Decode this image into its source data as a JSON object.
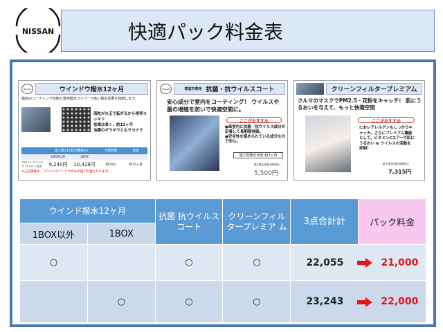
{
  "header": {
    "brand": "NISSAN",
    "title": "快適パック料金表"
  },
  "cards": [
    {
      "title": "ウインドウ撥水12ヶ月",
      "desc": "独自のコーティング技術と専用撥水ワイパーで高い撥水効果を持続します。",
      "points": [
        "雨粒が水玉で転がるから視界スッキリ",
        "効果は長く、約12ヶ月",
        "油膜のギラギラともサヨナラ"
      ],
      "table_head": [
        "施工費込料金(消費税込)",
        "作業時間",
        "効果"
      ],
      "sub_head": [
        "1BOX以外",
        "1BOX"
      ],
      "row_label": "フロントウインドウ ワイパー付き",
      "prices": [
        "9,240円",
        "10,428円"
      ],
      "time": "約30分",
      "effect": "約12ヶ月",
      "note": "※上記価格は、フロントウインドウのみの施工料金となります。"
    },
    {
      "tag": "車室内専用",
      "title": "抗菌・抗ウイルスコート",
      "lead": "安心成分で室内をコーティング！ ウイルスや菌の増殖を防いで快適空間に。",
      "badge": "ここがおすすめ",
      "points": [
        "●車室内に抗菌・抗ウイルス成分が定着して長期間持続。",
        "●安全性を認められている成分なので安心。"
      ],
      "duration": "施工間隔の目安 約3ヶ月",
      "price_label": "施工費込料金(消費税込)",
      "price": "5,500円"
    },
    {
      "title": "クリーンフィルタープレミアム",
      "lead": "クルマのマスクでPM2.5・花粉をキャッチ！ 肌にうるおいを与えて、もっと快適空間",
      "badge": "ここがおすすめ",
      "body": "においアレルゲンもしっかりキャッチ。さらにプレミアム機能として、ビタミンCエアーで肌にうるおい & ウイルスの活動を抑制！",
      "price_label": "施工費込料金(消費税込)",
      "price": "7,315円"
    }
  ],
  "table": {
    "group_header": "ウインド撥水12ヶ月",
    "sub_headers": [
      "1BOX以外",
      "1BOX"
    ],
    "headers": [
      "抗菌 抗ウイルス コート",
      "クリーンフィル タープレミア ム",
      "3点合計計",
      "パック料金"
    ],
    "rows": [
      {
        "c1": "○",
        "c2": "",
        "c3": "○",
        "c4": "○",
        "total": "22,055",
        "pack": "21,000"
      },
      {
        "c1": "",
        "c2": "○",
        "c3": "○",
        "c4": "○",
        "total": "23,243",
        "pack": "22,000"
      }
    ]
  },
  "colors": {
    "header_blue": "#5b9bd5",
    "pack_pink": "#f8c8f0",
    "price_red": "#e0181a",
    "border_blue": "#4a74b8"
  }
}
